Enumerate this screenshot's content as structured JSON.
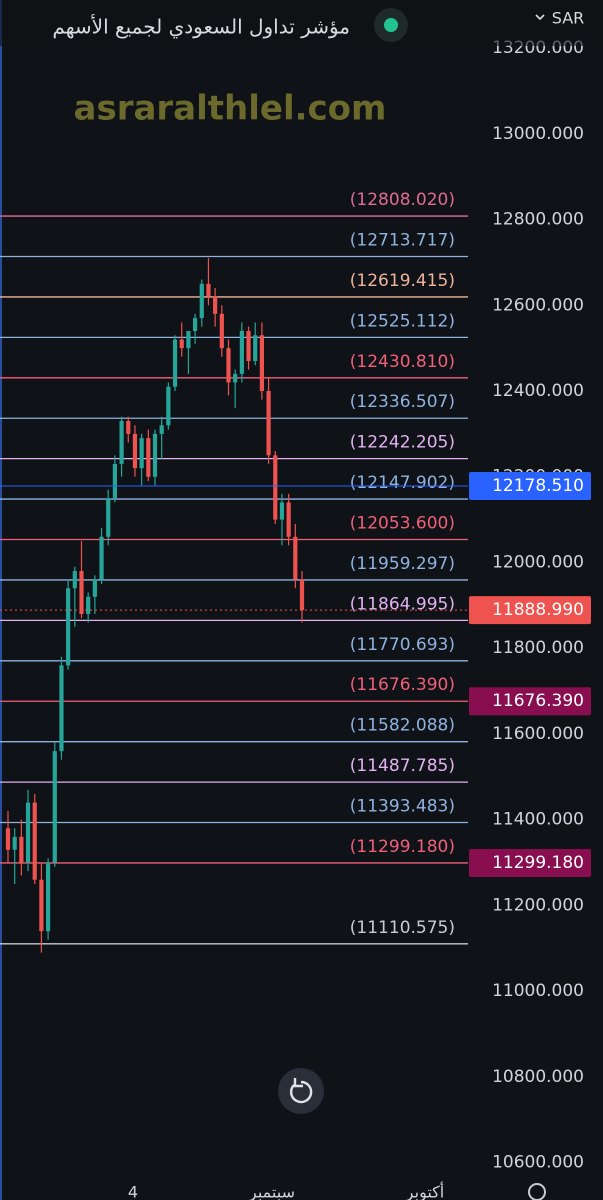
{
  "chart_data": {
    "type": "candlestick",
    "title": "مؤشر تداول السعودي لجميع الأسهم",
    "currency": "SAR",
    "watermark": "asraralthlel.com",
    "up_color": "#26a69a",
    "down_color": "#ef5350",
    "ylim": [
      10583,
      13312
    ],
    "yticks": [
      {
        "value": 13200,
        "label": "13200.000"
      },
      {
        "value": 13000,
        "label": "13000.000"
      },
      {
        "value": 12800,
        "label": "12800.000"
      },
      {
        "value": 12600,
        "label": "12600.000"
      },
      {
        "value": 12400,
        "label": "12400.000"
      },
      {
        "value": 12200,
        "label": "12200.000"
      },
      {
        "value": 12000,
        "label": "12000.000"
      },
      {
        "value": 11800,
        "label": "11800.000"
      },
      {
        "value": 11600,
        "label": "11600.000"
      },
      {
        "value": 11400,
        "label": "11400.000"
      },
      {
        "value": 11200,
        "label": "11200.000"
      },
      {
        "value": 11000,
        "label": "11000.000"
      },
      {
        "value": 10800,
        "label": "10800.000"
      },
      {
        "value": 10600,
        "label": "10600.000"
      }
    ],
    "x_labels": [
      "4",
      "سبتمبر",
      "أكتوبر"
    ],
    "open": [
      11380,
      11330,
      11360,
      11300,
      11440,
      11260,
      11140,
      11300,
      11560,
      11760,
      11940,
      11980,
      11880,
      11920,
      11960,
      12060,
      12150,
      12230,
      12330,
      12300,
      12220,
      12290,
      12200,
      12300,
      12320,
      12410,
      12520,
      12500,
      12540,
      12570,
      12650,
      12620,
      12580,
      12500,
      12420,
      12440,
      12540,
      12470,
      12530,
      12400,
      12250,
      12100,
      12140,
      12060,
      11960
    ],
    "high": [
      11420,
      11380,
      11400,
      11470,
      11460,
      11300,
      11310,
      11580,
      11780,
      11960,
      11990,
      12050,
      11930,
      11970,
      12080,
      12170,
      12250,
      12340,
      12340,
      12320,
      12300,
      12310,
      12310,
      12340,
      12420,
      12530,
      12560,
      12540,
      12580,
      12660,
      12710,
      12640,
      12600,
      12520,
      12450,
      12560,
      12550,
      12560,
      12560,
      12430,
      12260,
      12160,
      12160,
      12090,
      11980
    ],
    "low": [
      11300,
      11250,
      11270,
      11280,
      11250,
      11090,
      11120,
      11290,
      11540,
      11750,
      11850,
      11870,
      11860,
      11880,
      11950,
      12040,
      12140,
      12200,
      12280,
      12200,
      12180,
      12190,
      12180,
      12240,
      12310,
      12400,
      12480,
      12440,
      12510,
      12550,
      12600,
      12550,
      12480,
      12390,
      12360,
      12420,
      12450,
      12460,
      12380,
      12230,
      12090,
      12040,
      12040,
      11940,
      11860
    ],
    "close": [
      11330,
      11360,
      11300,
      11440,
      11260,
      11140,
      11300,
      11560,
      11760,
      11940,
      11980,
      11880,
      11920,
      11960,
      12060,
      12150,
      12230,
      12330,
      12300,
      12220,
      12290,
      12200,
      12300,
      12320,
      12410,
      12520,
      12500,
      12540,
      12570,
      12650,
      12620,
      12580,
      12500,
      12420,
      12440,
      12540,
      12470,
      12530,
      12400,
      12250,
      12100,
      12140,
      12060,
      11960,
      11889
    ],
    "levels": [
      {
        "value": 12808.02,
        "label": "(12808.020)",
        "color": "#e06c92"
      },
      {
        "value": 12713.717,
        "label": "(12713.717)",
        "color": "#8fb3e0"
      },
      {
        "value": 12619.415,
        "label": "(12619.415)",
        "color": "#f0b49c"
      },
      {
        "value": 12525.112,
        "label": "(12525.112)",
        "color": "#8fb3e0"
      },
      {
        "value": 12430.81,
        "label": "(12430.810)",
        "color": "#f0607a"
      },
      {
        "value": 12336.507,
        "label": "(12336.507)",
        "color": "#8fb3e0"
      },
      {
        "value": 12242.205,
        "label": "(12242.205)",
        "color": "#e2b2f2"
      },
      {
        "value": 12147.902,
        "label": "(12147.902)",
        "color": "#8fb3e0"
      },
      {
        "value": 12053.6,
        "label": "(12053.600)",
        "color": "#f0607a"
      },
      {
        "value": 11959.297,
        "label": "(11959.297)",
        "color": "#8fb3e0"
      },
      {
        "value": 11864.995,
        "label": "(11864.995)",
        "color": "#e2b2f2"
      },
      {
        "value": 11770.693,
        "label": "(11770.693)",
        "color": "#8fb3e0"
      },
      {
        "value": 11676.39,
        "label": "(11676.390)",
        "color": "#f0607a"
      },
      {
        "value": 11582.088,
        "label": "(11582.088)",
        "color": "#8fb3e0"
      },
      {
        "value": 11487.785,
        "label": "(11487.785)",
        "color": "#e2b2f2"
      },
      {
        "value": 11393.483,
        "label": "(11393.483)",
        "color": "#8fb3e0"
      },
      {
        "value": 11299.18,
        "label": "(11299.180)",
        "color": "#f0607a"
      },
      {
        "value": 11110.575,
        "label": "(11110.575)",
        "color": "#c8ccd4"
      }
    ],
    "price_tags": [
      {
        "value": 12178.51,
        "label": "12178.510",
        "color": "#2962ff"
      },
      {
        "value": 11888.99,
        "label": "11888.990",
        "color": "#ef5350"
      },
      {
        "value": 11676.39,
        "label": "11676.390",
        "color": "#880e4f"
      },
      {
        "value": 11299.18,
        "label": "11299.180",
        "color": "#880e4f"
      }
    ]
  }
}
